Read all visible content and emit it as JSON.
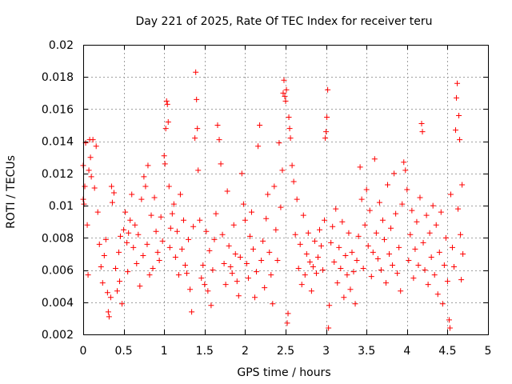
{
  "chart_data": {
    "type": "scatter",
    "title": "Day 221 of 2025, Rate Of TEC Index for receiver teru",
    "xlabel": "GPS time / hours",
    "ylabel": "ROTI / TECUs",
    "xlim": [
      0,
      5
    ],
    "ylim": [
      0.002,
      0.02
    ],
    "grid": true,
    "marker": "+",
    "color": "#ff0000",
    "x_ticks": [
      0,
      0.5,
      1,
      1.5,
      2,
      2.5,
      3,
      3.5,
      4,
      4.5,
      5
    ],
    "x_tick_labels": [
      "0",
      "0.5",
      "1",
      "1.5",
      "2",
      "2.5",
      "3",
      "3.5",
      "4",
      "4.5",
      "5"
    ],
    "y_ticks": [
      0.002,
      0.004,
      0.006,
      0.008,
      0.01,
      0.012,
      0.014,
      0.016,
      0.018,
      0.02
    ],
    "y_tick_labels": [
      "0.002",
      "0.004",
      "0.006",
      "0.008",
      "0.01",
      "0.012",
      "0.014",
      "0.016",
      "0.018",
      "0.02"
    ],
    "series": [
      {
        "name": "ROTI",
        "points": [
          [
            0.0,
            0.0125
          ],
          [
            0.0,
            0.0104
          ],
          [
            0.01,
            0.0101
          ],
          [
            0.02,
            0.0112
          ],
          [
            0.03,
            0.0139
          ],
          [
            0.05,
            0.0088
          ],
          [
            0.06,
            0.0057
          ],
          [
            0.07,
            0.0122
          ],
          [
            0.08,
            0.0141
          ],
          [
            0.09,
            0.013
          ],
          [
            0.1,
            0.0118
          ],
          [
            0.12,
            0.0141
          ],
          [
            0.14,
            0.0111
          ],
          [
            0.16,
            0.0137
          ],
          [
            0.18,
            0.0096
          ],
          [
            0.2,
            0.0076
          ],
          [
            0.22,
            0.0062
          ],
          [
            0.24,
            0.0052
          ],
          [
            0.26,
            0.0069
          ],
          [
            0.28,
            0.0079
          ],
          [
            0.3,
            0.0046
          ],
          [
            0.31,
            0.0034
          ],
          [
            0.32,
            0.0031
          ],
          [
            0.34,
            0.0043
          ],
          [
            0.35,
            0.0112
          ],
          [
            0.36,
            0.0102
          ],
          [
            0.38,
            0.0108
          ],
          [
            0.4,
            0.0061
          ],
          [
            0.42,
            0.0047
          ],
          [
            0.44,
            0.0071
          ],
          [
            0.45,
            0.0053
          ],
          [
            0.46,
            0.0081
          ],
          [
            0.48,
            0.0039
          ],
          [
            0.5,
            0.0085
          ],
          [
            0.52,
            0.0096
          ],
          [
            0.54,
            0.0077
          ],
          [
            0.55,
            0.0059
          ],
          [
            0.56,
            0.0083
          ],
          [
            0.58,
            0.0091
          ],
          [
            0.6,
            0.0107
          ],
          [
            0.62,
            0.0074
          ],
          [
            0.64,
            0.0088
          ],
          [
            0.66,
            0.0064
          ],
          [
            0.68,
            0.0082
          ],
          [
            0.7,
            0.005
          ],
          [
            0.72,
            0.0104
          ],
          [
            0.74,
            0.0069
          ],
          [
            0.75,
            0.0118
          ],
          [
            0.77,
            0.0112
          ],
          [
            0.79,
            0.0076
          ],
          [
            0.8,
            0.0125
          ],
          [
            0.82,
            0.0057
          ],
          [
            0.84,
            0.0094
          ],
          [
            0.86,
            0.0061
          ],
          [
            0.88,
            0.0105
          ],
          [
            0.9,
            0.0084
          ],
          [
            0.92,
            0.0071
          ],
          [
            0.94,
            0.0066
          ],
          [
            0.96,
            0.0093
          ],
          [
            0.98,
            0.0078
          ],
          [
            1.0,
            0.0131
          ],
          [
            1.01,
            0.0126
          ],
          [
            1.02,
            0.0148
          ],
          [
            1.03,
            0.0165
          ],
          [
            1.04,
            0.0163
          ],
          [
            1.05,
            0.0152
          ],
          [
            1.06,
            0.0112
          ],
          [
            1.07,
            0.0074
          ],
          [
            1.08,
            0.0086
          ],
          [
            1.1,
            0.0095
          ],
          [
            1.12,
            0.0101
          ],
          [
            1.14,
            0.0068
          ],
          [
            1.16,
            0.0084
          ],
          [
            1.18,
            0.0057
          ],
          [
            1.2,
            0.0107
          ],
          [
            1.22,
            0.0073
          ],
          [
            1.24,
            0.0091
          ],
          [
            1.26,
            0.0063
          ],
          [
            1.28,
            0.0058
          ],
          [
            1.3,
            0.0079
          ],
          [
            1.32,
            0.0048
          ],
          [
            1.34,
            0.0034
          ],
          [
            1.36,
            0.0087
          ],
          [
            1.38,
            0.0142
          ],
          [
            1.39,
            0.0183
          ],
          [
            1.4,
            0.0166
          ],
          [
            1.41,
            0.0148
          ],
          [
            1.42,
            0.0122
          ],
          [
            1.44,
            0.0091
          ],
          [
            1.46,
            0.0055
          ],
          [
            1.48,
            0.0063
          ],
          [
            1.5,
            0.0051
          ],
          [
            1.52,
            0.0084
          ],
          [
            1.54,
            0.0047
          ],
          [
            1.56,
            0.0072
          ],
          [
            1.58,
            0.0038
          ],
          [
            1.6,
            0.006
          ],
          [
            1.62,
            0.0079
          ],
          [
            1.64,
            0.0095
          ],
          [
            1.66,
            0.015
          ],
          [
            1.68,
            0.0141
          ],
          [
            1.7,
            0.0126
          ],
          [
            1.72,
            0.0082
          ],
          [
            1.74,
            0.0064
          ],
          [
            1.76,
            0.0051
          ],
          [
            1.78,
            0.0109
          ],
          [
            1.8,
            0.0075
          ],
          [
            1.82,
            0.0062
          ],
          [
            1.84,
            0.0058
          ],
          [
            1.86,
            0.0088
          ],
          [
            1.88,
            0.007
          ],
          [
            1.9,
            0.0053
          ],
          [
            1.92,
            0.0044
          ],
          [
            1.94,
            0.0068
          ],
          [
            1.96,
            0.012
          ],
          [
            1.98,
            0.0101
          ],
          [
            2.0,
            0.0091
          ],
          [
            2.02,
            0.0064
          ],
          [
            2.04,
            0.0055
          ],
          [
            2.06,
            0.0081
          ],
          [
            2.08,
            0.0096
          ],
          [
            2.1,
            0.0073
          ],
          [
            2.12,
            0.0043
          ],
          [
            2.14,
            0.0059
          ],
          [
            2.16,
            0.0137
          ],
          [
            2.18,
            0.015
          ],
          [
            2.2,
            0.0066
          ],
          [
            2.22,
            0.0078
          ],
          [
            2.24,
            0.0049
          ],
          [
            2.26,
            0.0092
          ],
          [
            2.28,
            0.0107
          ],
          [
            2.3,
            0.0071
          ],
          [
            2.32,
            0.0057
          ],
          [
            2.34,
            0.0039
          ],
          [
            2.36,
            0.0112
          ],
          [
            2.38,
            0.0085
          ],
          [
            2.4,
            0.0066
          ],
          [
            2.42,
            0.0139
          ],
          [
            2.44,
            0.0099
          ],
          [
            2.46,
            0.0122
          ],
          [
            2.47,
            0.017
          ],
          [
            2.48,
            0.0178
          ],
          [
            2.49,
            0.0168
          ],
          [
            2.5,
            0.0165
          ],
          [
            2.51,
            0.0172
          ],
          [
            2.52,
            0.0027
          ],
          [
            2.53,
            0.0033
          ],
          [
            2.54,
            0.0155
          ],
          [
            2.55,
            0.0148
          ],
          [
            2.56,
            0.0142
          ],
          [
            2.58,
            0.0125
          ],
          [
            2.6,
            0.0115
          ],
          [
            2.62,
            0.0082
          ],
          [
            2.64,
            0.0104
          ],
          [
            2.66,
            0.0061
          ],
          [
            2.68,
            0.0076
          ],
          [
            2.7,
            0.0051
          ],
          [
            2.72,
            0.0094
          ],
          [
            2.74,
            0.0057
          ],
          [
            2.76,
            0.007
          ],
          [
            2.78,
            0.0083
          ],
          [
            2.8,
            0.0065
          ],
          [
            2.82,
            0.0047
          ],
          [
            2.84,
            0.0062
          ],
          [
            2.86,
            0.0078
          ],
          [
            2.88,
            0.0058
          ],
          [
            2.9,
            0.0068
          ],
          [
            2.92,
            0.0085
          ],
          [
            2.94,
            0.0075
          ],
          [
            2.96,
            0.006
          ],
          [
            2.98,
            0.0091
          ],
          [
            2.99,
            0.0142
          ],
          [
            3.0,
            0.0146
          ],
          [
            3.01,
            0.0155
          ],
          [
            3.02,
            0.0172
          ],
          [
            3.03,
            0.0024
          ],
          [
            3.04,
            0.0038
          ],
          [
            3.06,
            0.0077
          ],
          [
            3.08,
            0.0087
          ],
          [
            3.1,
            0.0065
          ],
          [
            3.12,
            0.0098
          ],
          [
            3.14,
            0.0052
          ],
          [
            3.16,
            0.0074
          ],
          [
            3.18,
            0.0061
          ],
          [
            3.2,
            0.009
          ],
          [
            3.22,
            0.0043
          ],
          [
            3.24,
            0.0069
          ],
          [
            3.26,
            0.0057
          ],
          [
            3.28,
            0.0083
          ],
          [
            3.3,
            0.0048
          ],
          [
            3.32,
            0.0071
          ],
          [
            3.34,
            0.0059
          ],
          [
            3.36,
            0.0039
          ],
          [
            3.38,
            0.0066
          ],
          [
            3.4,
            0.0081
          ],
          [
            3.42,
            0.0124
          ],
          [
            3.44,
            0.0104
          ],
          [
            3.46,
            0.0061
          ],
          [
            3.48,
            0.0088
          ],
          [
            3.5,
            0.011
          ],
          [
            3.52,
            0.0075
          ],
          [
            3.54,
            0.0097
          ],
          [
            3.56,
            0.0056
          ],
          [
            3.58,
            0.0071
          ],
          [
            3.6,
            0.0129
          ],
          [
            3.62,
            0.0083
          ],
          [
            3.64,
            0.0067
          ],
          [
            3.66,
            0.0102
          ],
          [
            3.68,
            0.006
          ],
          [
            3.7,
            0.0091
          ],
          [
            3.72,
            0.0079
          ],
          [
            3.74,
            0.0052
          ],
          [
            3.76,
            0.0113
          ],
          [
            3.78,
            0.007
          ],
          [
            3.8,
            0.0086
          ],
          [
            3.82,
            0.0063
          ],
          [
            3.84,
            0.012
          ],
          [
            3.86,
            0.0095
          ],
          [
            3.88,
            0.0058
          ],
          [
            3.9,
            0.0074
          ],
          [
            3.92,
            0.0047
          ],
          [
            3.94,
            0.0101
          ],
          [
            3.96,
            0.0127
          ],
          [
            3.98,
            0.0122
          ],
          [
            4.0,
            0.011
          ],
          [
            4.02,
            0.0066
          ],
          [
            4.04,
            0.0082
          ],
          [
            4.06,
            0.0097
          ],
          [
            4.08,
            0.0055
          ],
          [
            4.1,
            0.0073
          ],
          [
            4.12,
            0.009
          ],
          [
            4.14,
            0.0063
          ],
          [
            4.16,
            0.0105
          ],
          [
            4.18,
            0.0151
          ],
          [
            4.19,
            0.0146
          ],
          [
            4.2,
            0.0077
          ],
          [
            4.22,
            0.006
          ],
          [
            4.24,
            0.0094
          ],
          [
            4.26,
            0.0051
          ],
          [
            4.28,
            0.0083
          ],
          [
            4.3,
            0.0068
          ],
          [
            4.32,
            0.01
          ],
          [
            4.34,
            0.0057
          ],
          [
            4.36,
            0.0088
          ],
          [
            4.38,
            0.0045
          ],
          [
            4.4,
            0.0071
          ],
          [
            4.42,
            0.0096
          ],
          [
            4.44,
            0.0039
          ],
          [
            4.46,
            0.0063
          ],
          [
            4.48,
            0.008
          ],
          [
            4.5,
            0.0053
          ],
          [
            4.52,
            0.0029
          ],
          [
            4.53,
            0.0024
          ],
          [
            4.54,
            0.0107
          ],
          [
            4.56,
            0.0074
          ],
          [
            4.58,
            0.0062
          ],
          [
            4.6,
            0.0147
          ],
          [
            4.61,
            0.0167
          ],
          [
            4.62,
            0.0176
          ],
          [
            4.63,
            0.0098
          ],
          [
            4.64,
            0.0156
          ],
          [
            4.65,
            0.0141
          ],
          [
            4.66,
            0.0082
          ],
          [
            4.67,
            0.0054
          ],
          [
            4.68,
            0.0113
          ],
          [
            4.69,
            0.007
          ]
        ]
      }
    ]
  }
}
